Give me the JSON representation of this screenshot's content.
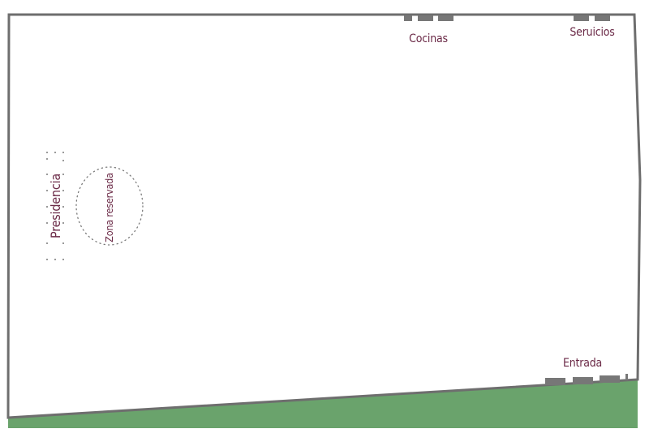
{
  "colors": {
    "wall": "#6e6e6e",
    "lawn": "#6aa36c",
    "label": "#6b2a47",
    "door": "#777777",
    "dots": "#7a7a7a"
  },
  "labels": {
    "kitchens": "Cocinas",
    "services": "Seruicios",
    "entrance": "Entrada",
    "head_table": "Presidencia",
    "reserved_zone": "Zona reservada"
  }
}
